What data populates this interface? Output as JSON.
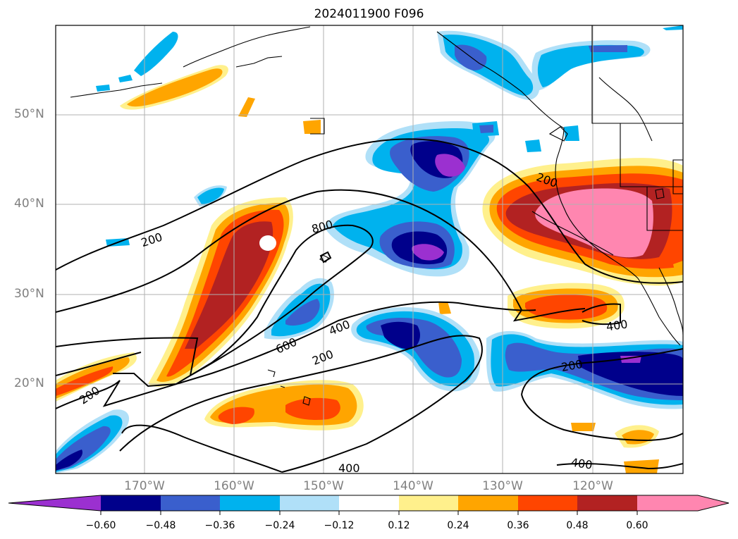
{
  "title": "2024011900 F096",
  "latitude_labels": [
    "50°N",
    "40°N",
    "30°N",
    "20°N"
  ],
  "longitude_labels": [
    "170°W",
    "160°W",
    "150°W",
    "140°W",
    "130°W",
    "120°W"
  ],
  "contour_labels": [
    "200",
    "800",
    "400",
    "600",
    "200",
    "200",
    "200",
    "400",
    "200",
    "400",
    "400"
  ],
  "colorbar": {
    "tick_labels": [
      "−0.60",
      "−0.48",
      "−0.36",
      "−0.24",
      "−0.12",
      "0.12",
      "0.24",
      "0.36",
      "0.48",
      "0.60"
    ],
    "colors": [
      "#9b30d0",
      "#00008b",
      "#3a5fcd",
      "#00b2ee",
      "#b0e0f8",
      "#ffffff",
      "#fff08c",
      "#ffa500",
      "#ff4500",
      "#b22222",
      "#ff86b0"
    ]
  }
}
